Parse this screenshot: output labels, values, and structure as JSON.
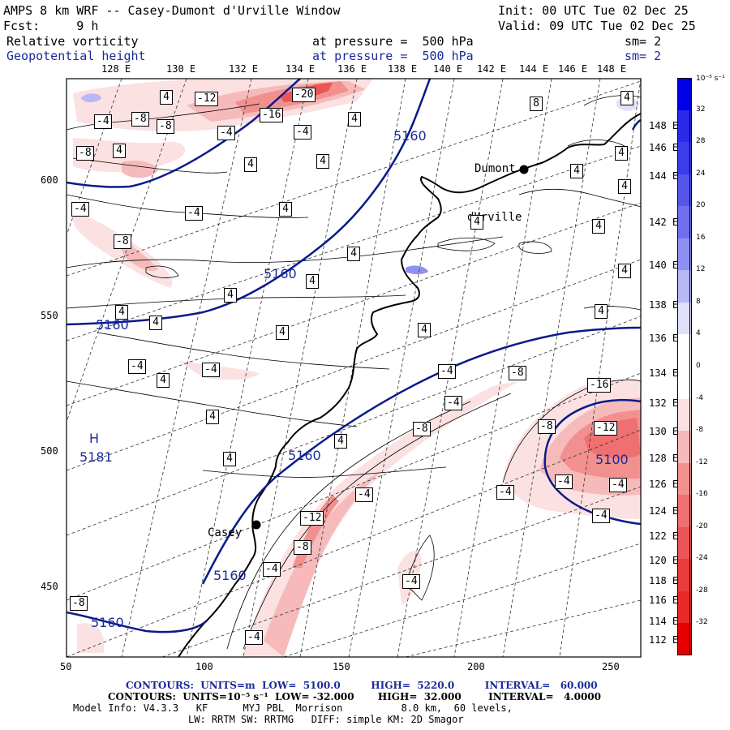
{
  "header": {
    "line1_left": "AMPS 8 km WRF -- Casey-Dumont d'Urville Window",
    "line1_right": "Init: 00 UTC Tue 02 Dec 25",
    "line2_left": "Fcst:     9 h",
    "line2_right": "Valid: 09 UTC Tue 02 Dec 25",
    "field1_name": "Relative vorticity",
    "field1_level": "at pressure =  500 hPa",
    "field1_sm": "sm= 2",
    "field2_name": "Geopotential height",
    "field2_level": "at pressure =  500 hPa",
    "field2_sm": "sm= 2"
  },
  "top_lon_labels": [
    "128 E",
    "130 E",
    "132 E",
    "134 E",
    "136 E",
    "138 E",
    "140 E",
    "142 E",
    "144 E",
    "146 E",
    "148 E"
  ],
  "right_lon_labels": [
    "148 E",
    "146 E",
    "144 E",
    "142 E",
    "140 E",
    "138 E",
    "136 E",
    "134 E",
    "132 E",
    "130 E",
    "128 E",
    "126 E",
    "124 E",
    "122 E",
    "120 E",
    "118 E",
    "116 E",
    "114 E",
    "112 E"
  ],
  "x_axis_labels": [
    "50",
    "100",
    "150",
    "200",
    "250"
  ],
  "y_axis_labels": [
    "600",
    "550",
    "500",
    "450"
  ],
  "stations": [
    {
      "name_line1": "Dumont",
      "name_line2": "dUrville"
    },
    {
      "name_line1": "Casey",
      "name_line2": ""
    }
  ],
  "high_label": {
    "letter": "H",
    "value": "5181"
  },
  "height_contour_labels": [
    "5160",
    "5160",
    "5160",
    "5160",
    "5160",
    "5160",
    "5100"
  ],
  "vorticity_labels": [
    "4",
    "-12",
    "-16",
    "-20",
    "4",
    "-4",
    "-8",
    "-8",
    "-4",
    "-4",
    "-8",
    "4",
    "4",
    "4",
    "-4",
    "-4",
    "4",
    "-8",
    "4",
    "4",
    "4",
    "4",
    "4",
    "4",
    "4",
    "4",
    "4",
    "4",
    "4",
    "-4",
    "4",
    "-4",
    "4",
    "-4",
    "-8",
    "-4",
    "-8",
    "-16",
    "-12",
    "-8",
    "-4",
    "-4",
    "-4",
    "-4",
    "4",
    "-12",
    "-8",
    "-4",
    "-4",
    "-4",
    "-8",
    "-4",
    "4",
    "8",
    "4",
    "4",
    "4",
    "4"
  ],
  "colorbar": {
    "unit_label": "10⁻⁵ s⁻¹",
    "ticks": [
      "32",
      "28",
      "24",
      "20",
      "16",
      "12",
      "8",
      "4",
      "0",
      "-4",
      "-8",
      "-12",
      "-16",
      "-20",
      "-24",
      "-28",
      "-32"
    ],
    "colors": [
      "#0000e6",
      "#2a2ae8",
      "#3c3cea",
      "#5555ea",
      "#7070ee",
      "#9090f2",
      "#b8b8f6",
      "#e0e0fb",
      "#ffffff",
      "#ffffff",
      "#fbe1e1",
      "#f6baba",
      "#f29090",
      "#ee7070",
      "#ea5555",
      "#ea3c3c",
      "#e82a2a",
      "#e60000"
    ]
  },
  "footer": {
    "line1": "CONTOURS:  UNITS=m  LOW=  5100.0         HIGH=  5220.0         INTERVAL=   60.000",
    "line2": "CONTOURS:  UNITS=10⁻⁵ s⁻¹  LOW= -32.000       HIGH=  32.000        INTERVAL=   4.0000",
    "line3": "Model Info: V4.3.3   KF      MYJ PBL  Morrison          8.0 km,  60 levels,",
    "line4": "LW: RRTM SW: RRTMG   DIFF: simple KM: 2D Smagor"
  }
}
